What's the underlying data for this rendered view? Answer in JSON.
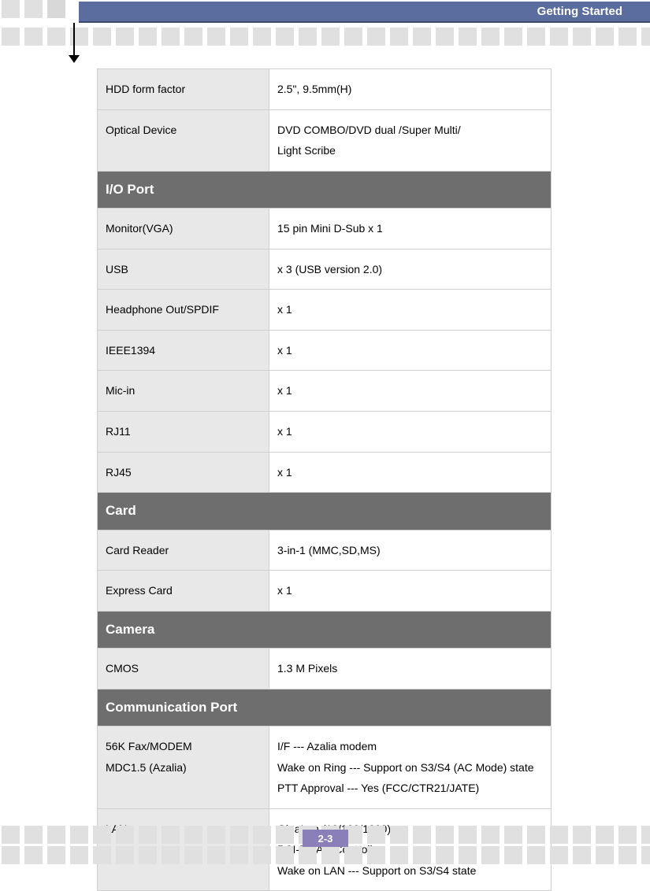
{
  "header": {
    "title": "Getting Started"
  },
  "page_number": "2-3",
  "colors": {
    "header_bar": "#5b6c9e",
    "header_border": "#3d4a70",
    "section_header_bg": "#6e6e6e",
    "label_bg": "#e8e8e8",
    "border": "#cfcfcf",
    "square": "#e0e0e0",
    "page_badge": "#8a7fb8"
  },
  "table": {
    "rows": [
      {
        "type": "data",
        "label": "HDD form factor",
        "value": "2.5\", 9.5mm(H)"
      },
      {
        "type": "data",
        "label": "Optical Device",
        "value": "DVD COMBO/DVD dual /Super Multi/\nLight Scribe"
      },
      {
        "type": "section",
        "title": "I/O Port"
      },
      {
        "type": "data",
        "label": "Monitor(VGA)",
        "value": "15 pin Mini D-Sub x 1"
      },
      {
        "type": "data",
        "label": "USB",
        "value": "x 3 (USB version 2.0)"
      },
      {
        "type": "data",
        "label": "Headphone Out/SPDIF",
        "value": "x 1"
      },
      {
        "type": "data",
        "label": "IEEE1394",
        "value": "x 1"
      },
      {
        "type": "data",
        "label": "Mic-in",
        "value": "x 1"
      },
      {
        "type": "data",
        "label": "RJ11",
        "value": "x 1"
      },
      {
        "type": "data",
        "label": "RJ45",
        "value": "x 1"
      },
      {
        "type": "section",
        "title": "Card"
      },
      {
        "type": "data",
        "label": "Card Reader",
        "value": "3-in-1 (MMC,SD,MS)"
      },
      {
        "type": "data",
        "label": "Express Card",
        "value": "x 1"
      },
      {
        "type": "section",
        "title": "Camera"
      },
      {
        "type": "data",
        "label": "CMOS",
        "value": "1.3 M Pixels"
      },
      {
        "type": "section",
        "title": "Communication Port"
      },
      {
        "type": "data",
        "label": "56K Fax/MODEM\nMDC1.5 (Azalia)",
        "value": "I/F --- Azalia modem\nWake on Ring --- Support on S3/S4 (AC Mode) state\nPTT Approval --- Yes (FCC/CTR21/JATE)"
      },
      {
        "type": "data",
        "label": "LAN",
        "value": "GigaLan (10/100/1000)\nPCI-E LAN Controller\nWake on LAN --- Support on S3/S4 state"
      }
    ]
  }
}
